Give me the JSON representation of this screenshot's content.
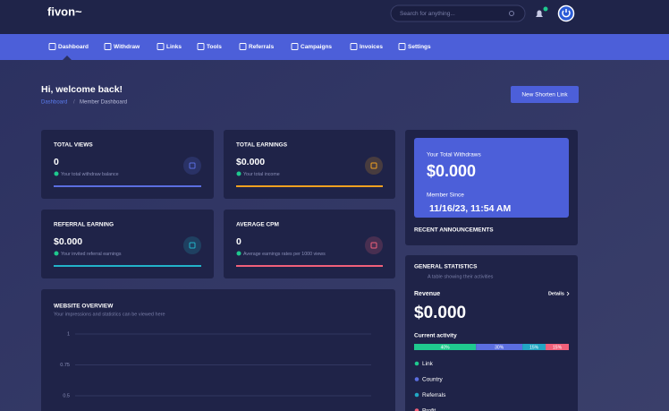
{
  "header": {
    "logo": "fivon~",
    "search_placeholder": "Search for anything..."
  },
  "nav": [
    "Dashboard",
    "Withdraw",
    "Links",
    "Tools",
    "Referrals",
    "Campaigns",
    "Invoices",
    "Settings"
  ],
  "page": {
    "greeting": "Hi, welcome back!",
    "breadcrumb": [
      "Dashboard",
      "Member Dashboard"
    ],
    "button": "New Shorten Link"
  },
  "stats": [
    {
      "title": "TOTAL VIEWS",
      "value": "0",
      "note": "Your total withdraw balance",
      "color": "#5b6ee0"
    },
    {
      "title": "TOTAL EARNINGS",
      "value": "$0.000",
      "note": "Your total income",
      "color": "#f0a020"
    },
    {
      "title": "REFERRAL EARNING",
      "value": "$0.000",
      "note": "Your invited referral earnings",
      "color": "#22b3c9"
    },
    {
      "title": "AVERAGE CPM",
      "value": "0",
      "note": "Average earnings rates per 1000 views",
      "color": "#f0607a"
    }
  ],
  "withdraw_card": {
    "label": "Your Total Withdraws",
    "value": "$0.000",
    "member_label": "Member Since",
    "member_date": "11/16/23, 11:54 AM"
  },
  "announcements": {
    "title": "RECENT ANNOUNCEMENTS"
  },
  "overview": {
    "title": "WEBSITE OVERVIEW",
    "subtitle": "Your impressions and statistics can be viewed here",
    "yticks": [
      1,
      0.75,
      0.5
    ]
  },
  "general": {
    "title": "GENERAL STATISTICS",
    "subtitle": "A table showing their activities",
    "revenue_label": "Revenue",
    "details": "Details",
    "revenue": "$0.000",
    "activity_label": "Current activity",
    "segments": [
      {
        "name": "Link",
        "value": 40,
        "label": "40%",
        "color": "#1fc98e"
      },
      {
        "name": "Country",
        "value": 30,
        "label": "30%",
        "color": "#5b6ee0"
      },
      {
        "name": "Referrals",
        "value": 15,
        "label": "15%",
        "color": "#22a7c4"
      },
      {
        "name": "Profit",
        "value": 15,
        "label": "15%",
        "color": "#f0607a"
      }
    ]
  }
}
